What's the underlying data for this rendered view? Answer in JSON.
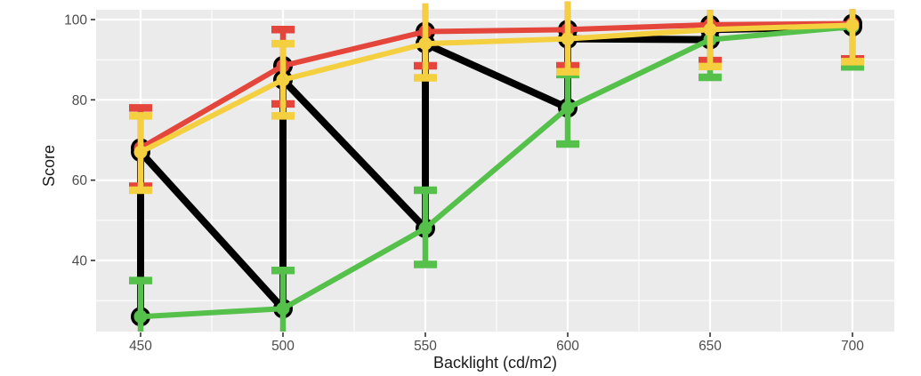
{
  "figure": {
    "background": "#FFFFFF",
    "panel_background": "#EBEBEB",
    "grid_color": "#FFFFFF",
    "tick_color": "#333333",
    "tick_label_color": "#4D4D4D",
    "axis_title_color": "#1A1A1A"
  },
  "chart_data": {
    "type": "line",
    "title": "",
    "xlabel": "Backlight (cd/m2)",
    "ylabel": "Score",
    "grid": true,
    "legend": "none",
    "x": [
      450,
      500,
      550,
      600,
      650,
      700
    ],
    "x_ticks": [
      450,
      500,
      550,
      600,
      650,
      700
    ],
    "x_minor": [
      475,
      525,
      575,
      625,
      675
    ],
    "y_ticks": [
      40,
      60,
      80,
      100
    ],
    "y_minor": [
      30,
      50,
      70,
      90
    ],
    "xlim": [
      434,
      715
    ],
    "ylim": [
      22.3,
      102.7
    ],
    "series": [
      {
        "name": "red",
        "color": "#E5463C",
        "values": [
          68,
          88.5,
          97,
          97.5,
          98.7,
          99
        ],
        "err_lo": [
          58.5,
          79,
          88.5,
          88.5,
          89.8,
          90.2
        ],
        "err_hi": [
          78,
          97.5,
          104,
          104.5,
          102.4,
          102.6
        ]
      },
      {
        "name": "green",
        "color": "#55C14A",
        "values": [
          26,
          28,
          48,
          78,
          95,
          98.2
        ],
        "err_lo": [
          15,
          16,
          39,
          69,
          85.6,
          88.2
        ],
        "err_hi": [
          35,
          37.5,
          57.5,
          86.3,
          102,
          102
        ]
      },
      {
        "name": "yellow",
        "color": "#F4CF3F",
        "values": [
          67,
          85,
          94,
          95.2,
          97.5,
          98.6
        ],
        "err_lo": [
          57.5,
          76,
          85.5,
          87,
          88.3,
          89.5
        ],
        "err_hi": [
          76,
          94,
          104,
          104.5,
          102.4,
          102.6
        ]
      }
    ],
    "shadow_series": {
      "name": "black-ungrouped-line",
      "color": "#000000",
      "note": "single black polyline through every point (order per x: green, red, yellow) with large black points under each colored point",
      "points": [
        [
          450,
          26
        ],
        [
          450,
          68
        ],
        [
          450,
          67
        ],
        [
          500,
          28
        ],
        [
          500,
          88.5
        ],
        [
          500,
          85
        ],
        [
          550,
          48
        ],
        [
          550,
          97
        ],
        [
          550,
          94
        ],
        [
          600,
          78
        ],
        [
          600,
          97.5
        ],
        [
          600,
          95.2
        ],
        [
          650,
          95
        ],
        [
          650,
          98.7
        ],
        [
          650,
          97.5
        ],
        [
          700,
          98.2
        ],
        [
          700,
          99
        ],
        [
          700,
          98.6
        ]
      ]
    }
  }
}
